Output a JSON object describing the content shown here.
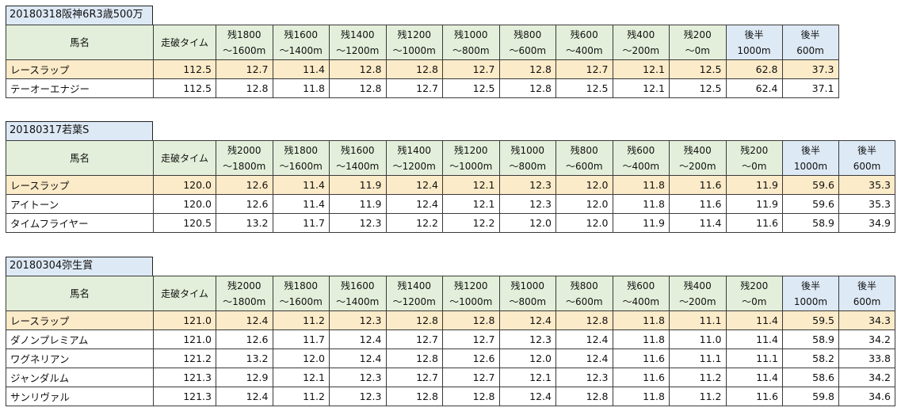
{
  "tables": [
    {
      "title": "20180318阪神6R3歳500万",
      "header": {
        "name": "馬名",
        "time": "走破タイム",
        "splits": [
          {
            "l1": "残1800",
            "l2": "～1600m"
          },
          {
            "l1": "残1600",
            "l2": "～1400m"
          },
          {
            "l1": "残1400",
            "l2": "～1200m"
          },
          {
            "l1": "残1200",
            "l2": "～1000m"
          },
          {
            "l1": "残1000",
            "l2": "～800m"
          },
          {
            "l1": "残800",
            "l2": "～600m"
          },
          {
            "l1": "残600",
            "l2": "～400m"
          },
          {
            "l1": "残400",
            "l2": "～200m"
          },
          {
            "l1": "残200",
            "l2": "～0m"
          }
        ],
        "late": [
          {
            "l1": "後半",
            "l2": "1000m"
          },
          {
            "l1": "後半",
            "l2": "600m"
          }
        ]
      },
      "rows": [
        {
          "name": "レースラップ",
          "time": "112.5",
          "splits": [
            "12.7",
            "11.4",
            "12.8",
            "12.8",
            "12.7",
            "12.8",
            "12.7",
            "12.1",
            "12.5"
          ],
          "late": [
            "62.8",
            "37.3"
          ]
        },
        {
          "name": "テーオーエナジー",
          "time": "112.5",
          "splits": [
            "12.8",
            "11.8",
            "12.8",
            "12.7",
            "12.5",
            "12.8",
            "12.5",
            "12.1",
            "12.5"
          ],
          "late": [
            "62.4",
            "37.1"
          ]
        }
      ]
    },
    {
      "title": "20180317若葉S",
      "header": {
        "name": "馬名",
        "time": "走破タイム",
        "splits": [
          {
            "l1": "残2000",
            "l2": "～1800m"
          },
          {
            "l1": "残1800",
            "l2": "～1600m"
          },
          {
            "l1": "残1600",
            "l2": "～1400m"
          },
          {
            "l1": "残1400",
            "l2": "～1200m"
          },
          {
            "l1": "残1200",
            "l2": "～1000m"
          },
          {
            "l1": "残1000",
            "l2": "～800m"
          },
          {
            "l1": "残800",
            "l2": "～600m"
          },
          {
            "l1": "残600",
            "l2": "～400m"
          },
          {
            "l1": "残400",
            "l2": "～200m"
          },
          {
            "l1": "残200",
            "l2": "～0m"
          }
        ],
        "late": [
          {
            "l1": "後半",
            "l2": "1000m"
          },
          {
            "l1": "後半",
            "l2": "600m"
          }
        ]
      },
      "rows": [
        {
          "name": "レースラップ",
          "time": "120.0",
          "splits": [
            "12.6",
            "11.4",
            "11.9",
            "12.4",
            "12.1",
            "12.3",
            "12.0",
            "11.8",
            "11.6",
            "11.9"
          ],
          "late": [
            "59.6",
            "35.3"
          ]
        },
        {
          "name": "アイトーン",
          "time": "120.0",
          "splits": [
            "12.6",
            "11.4",
            "11.9",
            "12.4",
            "12.1",
            "12.3",
            "12.0",
            "11.8",
            "11.6",
            "11.9"
          ],
          "late": [
            "59.6",
            "35.3"
          ]
        },
        {
          "name": "タイムフライヤー",
          "time": "120.5",
          "splits": [
            "13.2",
            "11.7",
            "12.3",
            "12.2",
            "12.2",
            "12.0",
            "12.0",
            "11.9",
            "11.4",
            "11.6"
          ],
          "late": [
            "58.9",
            "34.9"
          ]
        }
      ]
    },
    {
      "title": "20180304弥生賞",
      "header": {
        "name": "馬名",
        "time": "走破タイム",
        "splits": [
          {
            "l1": "残2000",
            "l2": "～1800m"
          },
          {
            "l1": "残1800",
            "l2": "～1600m"
          },
          {
            "l1": "残1600",
            "l2": "～1400m"
          },
          {
            "l1": "残1400",
            "l2": "～1200m"
          },
          {
            "l1": "残1200",
            "l2": "～1000m"
          },
          {
            "l1": "残1000",
            "l2": "～800m"
          },
          {
            "l1": "残800",
            "l2": "～600m"
          },
          {
            "l1": "残600",
            "l2": "～400m"
          },
          {
            "l1": "残400",
            "l2": "～200m"
          },
          {
            "l1": "残200",
            "l2": "～0m"
          }
        ],
        "late": [
          {
            "l1": "後半",
            "l2": "1000m"
          },
          {
            "l1": "後半",
            "l2": "600m"
          }
        ]
      },
      "rows": [
        {
          "name": "レースラップ",
          "time": "121.0",
          "splits": [
            "12.4",
            "11.2",
            "12.3",
            "12.8",
            "12.8",
            "12.4",
            "12.8",
            "11.8",
            "11.1",
            "11.4"
          ],
          "late": [
            "59.5",
            "34.3"
          ]
        },
        {
          "name": "ダノンプレミアム",
          "time": "121.0",
          "splits": [
            "12.6",
            "11.7",
            "12.4",
            "12.7",
            "12.7",
            "12.3",
            "12.4",
            "11.8",
            "11.0",
            "11.4"
          ],
          "late": [
            "58.9",
            "34.2"
          ]
        },
        {
          "name": "ワグネリアン",
          "time": "121.2",
          "splits": [
            "13.2",
            "12.0",
            "12.4",
            "12.8",
            "12.6",
            "12.0",
            "12.4",
            "11.6",
            "11.1",
            "11.1"
          ],
          "late": [
            "58.2",
            "33.8"
          ]
        },
        {
          "name": "ジャンダルム",
          "time": "121.3",
          "splits": [
            "12.9",
            "12.1",
            "12.3",
            "12.7",
            "12.7",
            "12.1",
            "12.3",
            "11.6",
            "11.2",
            "11.4"
          ],
          "late": [
            "58.6",
            "34.2"
          ]
        },
        {
          "name": "サンリヴァル",
          "time": "121.3",
          "splits": [
            "12.4",
            "11.2",
            "12.3",
            "12.8",
            "12.8",
            "12.4",
            "12.8",
            "11.8",
            "11.2",
            "11.6"
          ],
          "late": [
            "59.8",
            "34.6"
          ]
        }
      ]
    }
  ],
  "colors": {
    "header_green": "#e3efda",
    "header_blue": "#dde9f5",
    "race_lap_row": "#fcebc8"
  }
}
